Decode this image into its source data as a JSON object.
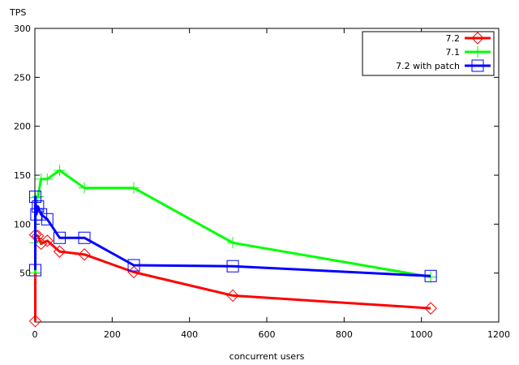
{
  "chart_data": {
    "type": "line",
    "title": "",
    "ylabel": "TPS",
    "xlabel": "concurrent users",
    "xlim": [
      0,
      1200
    ],
    "ylim": [
      0,
      300
    ],
    "x_ticks": [
      0,
      200,
      400,
      600,
      800,
      1000,
      1200
    ],
    "y_ticks": [
      50,
      100,
      150,
      200,
      250,
      300
    ],
    "grid": false,
    "legend_position": "top-right",
    "series": [
      {
        "name": "7.2",
        "color": "#ff0000",
        "marker": "diamond",
        "points": [
          [
            1,
            1
          ],
          [
            1,
            89
          ],
          [
            8,
            88
          ],
          [
            16,
            80
          ],
          [
            32,
            83
          ],
          [
            64,
            72
          ],
          [
            128,
            69
          ],
          [
            256,
            51
          ],
          [
            512,
            27
          ],
          [
            1024,
            14
          ]
        ]
      },
      {
        "name": "7.1",
        "color": "#00ff00",
        "marker": "plus",
        "points": [
          [
            1,
            50
          ],
          [
            1,
            81
          ],
          [
            2,
            127
          ],
          [
            8,
            128
          ],
          [
            16,
            146
          ],
          [
            32,
            146
          ],
          [
            64,
            155
          ],
          [
            128,
            137
          ],
          [
            256,
            137
          ],
          [
            512,
            81
          ],
          [
            1024,
            46
          ]
        ]
      },
      {
        "name": "7.2 with patch",
        "color": "#0000ff",
        "marker": "square",
        "points": [
          [
            1,
            53
          ],
          [
            1,
            128
          ],
          [
            4,
            110
          ],
          [
            8,
            118
          ],
          [
            16,
            110
          ],
          [
            32,
            105
          ],
          [
            64,
            86
          ],
          [
            128,
            86
          ],
          [
            256,
            58
          ],
          [
            512,
            57
          ],
          [
            1024,
            47
          ]
        ]
      }
    ]
  }
}
